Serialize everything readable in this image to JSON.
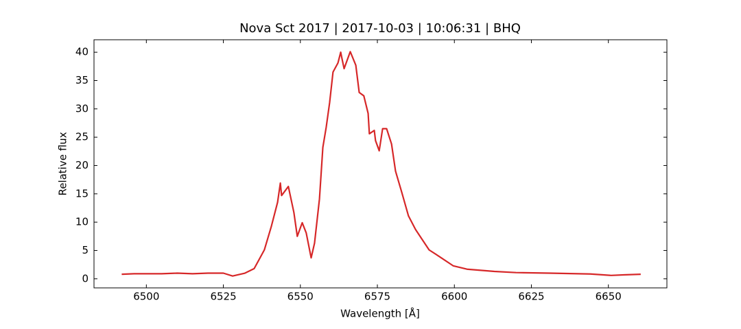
{
  "chart_data": {
    "type": "line",
    "title": "Nova Sct 2017 | 2017-10-03 | 10:06:31 | BHQ",
    "x_label": "Wavelength [Å]",
    "y_label": "Relative flux",
    "x": [
      6492,
      6496,
      6500,
      6505,
      6510,
      6515,
      6520,
      6525,
      6528,
      6532,
      6535,
      6538.3,
      6540.6,
      6542.6,
      6543.5,
      6543.9,
      6546.1,
      6547.9,
      6549,
      6550.6,
      6551.9,
      6553.5,
      6554.6,
      6556.2,
      6557.3,
      6558.4,
      6559.5,
      6560.6,
      6562.2,
      6563.1,
      6563.5,
      6564.2,
      6566.2,
      6568,
      6569.1,
      6570.6,
      6572,
      6572.4,
      6574,
      6574.4,
      6575.6,
      6576.7,
      6578,
      6579.6,
      6580.9,
      6582.9,
      6585.1,
      6587.4,
      6589.6,
      6591.8,
      6595.2,
      6599.6,
      6604.1,
      6613,
      6620,
      6630.8,
      6644.2,
      6650.9,
      6655,
      6660.5
    ],
    "values": [
      0.8,
      0.9,
      0.9,
      0.9,
      1.0,
      0.9,
      1.0,
      1.0,
      0.5,
      1.0,
      1.8,
      5.1,
      9.3,
      13.5,
      16.9,
      14.7,
      16.3,
      11.7,
      7.5,
      9.9,
      8.1,
      3.7,
      6.3,
      14.1,
      23.2,
      26.8,
      31.1,
      36.5,
      38.1,
      40.0,
      38.9,
      37.1,
      40.1,
      37.7,
      32.9,
      32.3,
      29.2,
      25.6,
      26.2,
      24.4,
      22.6,
      26.5,
      26.5,
      23.8,
      19.0,
      15.3,
      11.1,
      8.7,
      6.9,
      5.1,
      3.9,
      2.3,
      1.7,
      1.3,
      1.1,
      1.0,
      0.85,
      0.6,
      0.7,
      0.8
    ],
    "color": "#d62728",
    "xlim": [
      6483,
      6669
    ],
    "ylim": [
      -1.6,
      42.2
    ],
    "xticks": [
      6500,
      6525,
      6550,
      6575,
      6600,
      6625,
      6650
    ],
    "yticks": [
      0,
      5,
      10,
      15,
      20,
      25,
      30,
      35,
      40
    ],
    "grid": false
  }
}
